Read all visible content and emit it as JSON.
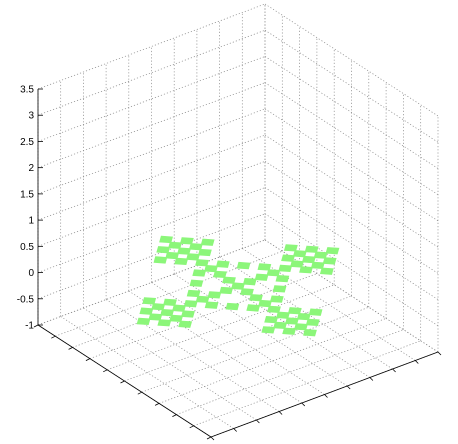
{
  "chart_data": {
    "type": "surface3d",
    "title": "",
    "xlabel": "",
    "ylabel": "",
    "zlabel": "",
    "zlim": [
      -1,
      3.5
    ],
    "z_ticks": [
      "-1",
      "-0.5",
      "0",
      "0.5",
      "1",
      "1.5",
      "2",
      "2.5",
      "3",
      "3.5"
    ],
    "grid": true,
    "surface_color": "#8cf67a",
    "surface_z": 0,
    "description_of_shape": "fractal cross built from repeated diamond-shaped tiles lying in the z = 0 plane",
    "tiles": [
      {
        "u": 0,
        "v": 0
      },
      {
        "u": 1,
        "v": 0
      },
      {
        "u": 2,
        "v": 0
      },
      {
        "u": 3,
        "v": 0
      },
      {
        "u": 4,
        "v": 0
      },
      {
        "u": 5,
        "v": 0
      },
      {
        "u": 6,
        "v": 0
      },
      {
        "u": 7,
        "v": 0
      },
      {
        "u": 8,
        "v": 0
      },
      {
        "u": -1,
        "v": 0
      },
      {
        "u": -2,
        "v": 0
      },
      {
        "u": -3,
        "v": 0
      },
      {
        "u": -4,
        "v": 0
      },
      {
        "u": -5,
        "v": 0
      },
      {
        "u": -6,
        "v": 0
      },
      {
        "u": -7,
        "v": 0
      },
      {
        "u": -8,
        "v": 0
      },
      {
        "u": 0,
        "v": 1
      },
      {
        "u": 0,
        "v": 2
      },
      {
        "u": 0,
        "v": 3
      },
      {
        "u": 0,
        "v": 4
      },
      {
        "u": 0,
        "v": 5
      },
      {
        "u": 0,
        "v": 6
      },
      {
        "u": 0,
        "v": 7
      },
      {
        "u": 0,
        "v": 8
      },
      {
        "u": 0,
        "v": -1
      },
      {
        "u": 0,
        "v": -2
      },
      {
        "u": 0,
        "v": -3
      },
      {
        "u": 0,
        "v": -4
      },
      {
        "u": 0,
        "v": -5
      },
      {
        "u": 0,
        "v": -6
      },
      {
        "u": 0,
        "v": -7
      },
      {
        "u": 0,
        "v": -8
      },
      {
        "u": 6,
        "v": 1
      },
      {
        "u": 6,
        "v": 2
      },
      {
        "u": 6,
        "v": -1
      },
      {
        "u": 6,
        "v": -2
      },
      {
        "u": 5,
        "v": 1
      },
      {
        "u": 7,
        "v": 1
      },
      {
        "u": 5,
        "v": -1
      },
      {
        "u": 7,
        "v": -1
      },
      {
        "u": -6,
        "v": 1
      },
      {
        "u": -6,
        "v": 2
      },
      {
        "u": -6,
        "v": -1
      },
      {
        "u": -6,
        "v": -2
      },
      {
        "u": -5,
        "v": 1
      },
      {
        "u": -7,
        "v": 1
      },
      {
        "u": -5,
        "v": -1
      },
      {
        "u": -7,
        "v": -1
      },
      {
        "u": 1,
        "v": 6
      },
      {
        "u": 2,
        "v": 6
      },
      {
        "u": -1,
        "v": 6
      },
      {
        "u": -2,
        "v": 6
      },
      {
        "u": 1,
        "v": 5
      },
      {
        "u": 1,
        "v": 7
      },
      {
        "u": -1,
        "v": 5
      },
      {
        "u": -1,
        "v": 7
      },
      {
        "u": 1,
        "v": -6
      },
      {
        "u": 2,
        "v": -6
      },
      {
        "u": -1,
        "v": -6
      },
      {
        "u": -2,
        "v": -6
      },
      {
        "u": 1,
        "v": -5
      },
      {
        "u": 1,
        "v": -7
      },
      {
        "u": -1,
        "v": -5
      },
      {
        "u": -1,
        "v": -7
      },
      {
        "u": 2,
        "v": 2
      },
      {
        "u": -2,
        "v": 2
      },
      {
        "u": 2,
        "v": -2
      },
      {
        "u": -2,
        "v": -2
      },
      {
        "u": 3,
        "v": 1
      },
      {
        "u": 3,
        "v": -1
      },
      {
        "u": -3,
        "v": 1
      },
      {
        "u": -3,
        "v": -1
      },
      {
        "u": 1,
        "v": 3
      },
      {
        "u": -1,
        "v": 3
      },
      {
        "u": 1,
        "v": -3
      },
      {
        "u": -1,
        "v": -3
      }
    ]
  }
}
